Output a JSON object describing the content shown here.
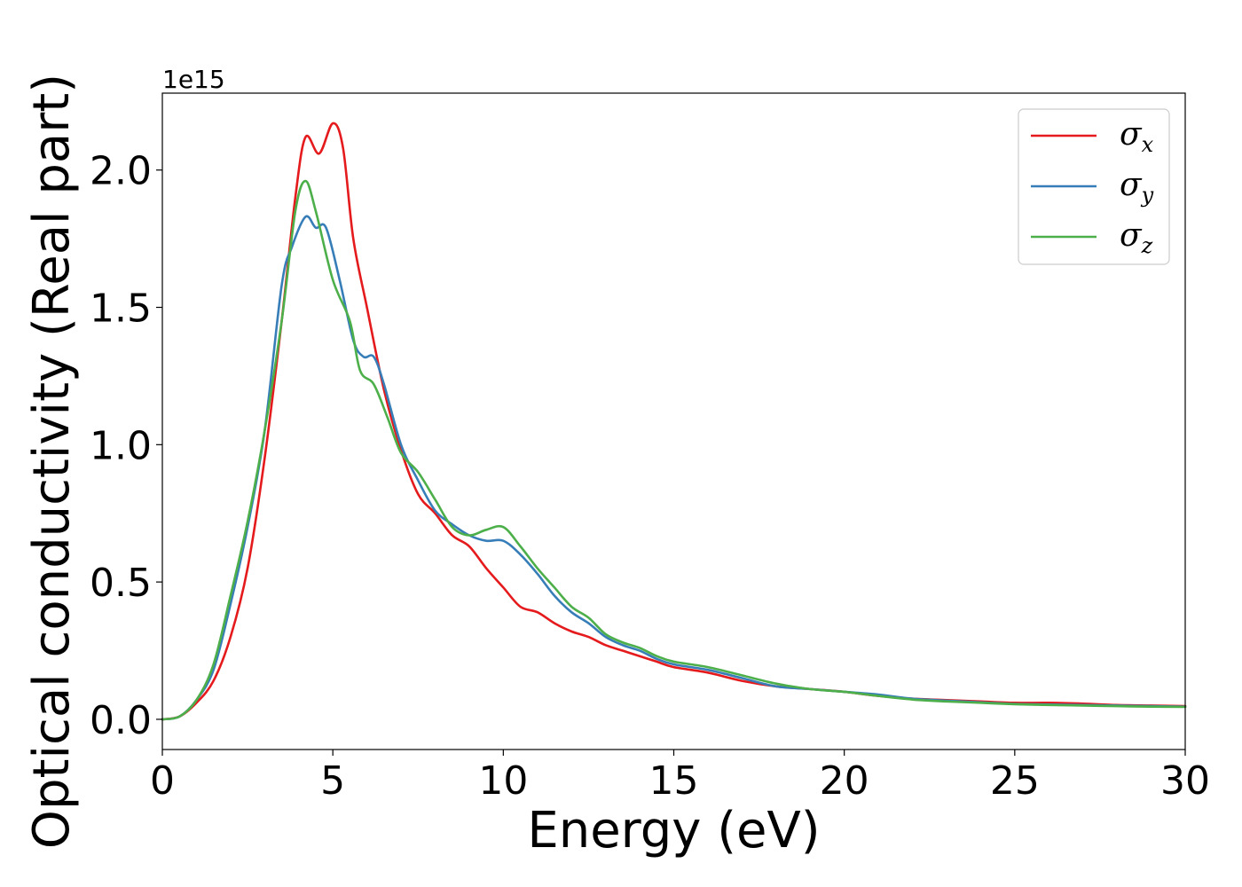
{
  "chart_data": {
    "type": "line",
    "xlabel": "Energy (eV)",
    "ylabel": "Optical conductivity (Real part)",
    "y_offset_label": "1e15",
    "xlim": [
      0,
      30
    ],
    "ylim": [
      -0.11,
      2.28
    ],
    "x_ticks": [
      0,
      5,
      10,
      15,
      20,
      25,
      30
    ],
    "x_tick_labels": [
      "0",
      "5",
      "10",
      "15",
      "20",
      "25",
      "30"
    ],
    "y_ticks": [
      0.0,
      0.5,
      1.0,
      1.5,
      2.0
    ],
    "y_tick_labels": [
      "0.0",
      "0.5",
      "1.0",
      "1.5",
      "2.0"
    ],
    "grid": false,
    "legend_position": "top-right",
    "series": [
      {
        "name": "σx",
        "legend_symbol": "σ",
        "legend_subscript": "x",
        "color": "#e41a1c",
        "points": [
          [
            0,
            0
          ],
          [
            0.5,
            0.01
          ],
          [
            1,
            0.06
          ],
          [
            1.5,
            0.14
          ],
          [
            2,
            0.3
          ],
          [
            2.5,
            0.55
          ],
          [
            3,
            0.95
          ],
          [
            3.5,
            1.45
          ],
          [
            3.9,
            1.9
          ],
          [
            4.2,
            2.12
          ],
          [
            4.6,
            2.06
          ],
          [
            5.0,
            2.17
          ],
          [
            5.3,
            2.08
          ],
          [
            5.6,
            1.75
          ],
          [
            6.0,
            1.5
          ],
          [
            6.5,
            1.2
          ],
          [
            7,
            0.98
          ],
          [
            7.5,
            0.82
          ],
          [
            8,
            0.75
          ],
          [
            8.5,
            0.67
          ],
          [
            9,
            0.63
          ],
          [
            9.5,
            0.55
          ],
          [
            10,
            0.48
          ],
          [
            10.5,
            0.41
          ],
          [
            11,
            0.39
          ],
          [
            11.5,
            0.35
          ],
          [
            12,
            0.32
          ],
          [
            12.5,
            0.3
          ],
          [
            13,
            0.27
          ],
          [
            13.5,
            0.25
          ],
          [
            14,
            0.23
          ],
          [
            14.5,
            0.21
          ],
          [
            15,
            0.19
          ],
          [
            16,
            0.17
          ],
          [
            17,
            0.14
          ],
          [
            18,
            0.12
          ],
          [
            19,
            0.11
          ],
          [
            20,
            0.1
          ],
          [
            21,
            0.085
          ],
          [
            22,
            0.075
          ],
          [
            23,
            0.07
          ],
          [
            24,
            0.065
          ],
          [
            25,
            0.06
          ],
          [
            26,
            0.06
          ],
          [
            27,
            0.057
          ],
          [
            28,
            0.052
          ],
          [
            29,
            0.05
          ],
          [
            30,
            0.048
          ]
        ]
      },
      {
        "name": "σy",
        "legend_symbol": "σ",
        "legend_subscript": "y",
        "color": "#377eb8",
        "points": [
          [
            0,
            0
          ],
          [
            0.5,
            0.01
          ],
          [
            1,
            0.07
          ],
          [
            1.5,
            0.18
          ],
          [
            2,
            0.42
          ],
          [
            2.5,
            0.7
          ],
          [
            3,
            1.05
          ],
          [
            3.5,
            1.58
          ],
          [
            3.8,
            1.72
          ],
          [
            4.2,
            1.83
          ],
          [
            4.5,
            1.79
          ],
          [
            4.8,
            1.79
          ],
          [
            5.2,
            1.6
          ],
          [
            5.6,
            1.38
          ],
          [
            5.9,
            1.32
          ],
          [
            6.2,
            1.32
          ],
          [
            6.5,
            1.22
          ],
          [
            7,
            1.0
          ],
          [
            7.5,
            0.87
          ],
          [
            8,
            0.76
          ],
          [
            8.5,
            0.71
          ],
          [
            9,
            0.67
          ],
          [
            9.5,
            0.65
          ],
          [
            10,
            0.65
          ],
          [
            10.5,
            0.6
          ],
          [
            11,
            0.53
          ],
          [
            11.5,
            0.45
          ],
          [
            12,
            0.39
          ],
          [
            12.5,
            0.35
          ],
          [
            13,
            0.3
          ],
          [
            13.5,
            0.27
          ],
          [
            14,
            0.25
          ],
          [
            14.5,
            0.22
          ],
          [
            15,
            0.2
          ],
          [
            16,
            0.18
          ],
          [
            17,
            0.15
          ],
          [
            18,
            0.12
          ],
          [
            19,
            0.11
          ],
          [
            20,
            0.1
          ],
          [
            21,
            0.09
          ],
          [
            22,
            0.075
          ],
          [
            23,
            0.068
          ],
          [
            24,
            0.062
          ],
          [
            25,
            0.056
          ],
          [
            26,
            0.054
          ],
          [
            27,
            0.052
          ],
          [
            28,
            0.05
          ],
          [
            29,
            0.048
          ],
          [
            30,
            0.046
          ]
        ]
      },
      {
        "name": "σz",
        "legend_symbol": "σ",
        "legend_subscript": "z",
        "color": "#4daf4a",
        "points": [
          [
            0,
            0
          ],
          [
            0.5,
            0.01
          ],
          [
            1,
            0.07
          ],
          [
            1.5,
            0.2
          ],
          [
            2,
            0.45
          ],
          [
            2.5,
            0.72
          ],
          [
            3,
            1.05
          ],
          [
            3.5,
            1.45
          ],
          [
            3.9,
            1.85
          ],
          [
            4.2,
            1.96
          ],
          [
            4.5,
            1.85
          ],
          [
            5.0,
            1.6
          ],
          [
            5.5,
            1.45
          ],
          [
            5.8,
            1.27
          ],
          [
            6.2,
            1.22
          ],
          [
            6.6,
            1.1
          ],
          [
            7,
            0.97
          ],
          [
            7.5,
            0.9
          ],
          [
            8,
            0.8
          ],
          [
            8.5,
            0.7
          ],
          [
            9,
            0.67
          ],
          [
            9.5,
            0.69
          ],
          [
            10,
            0.7
          ],
          [
            10.5,
            0.63
          ],
          [
            11,
            0.55
          ],
          [
            11.5,
            0.48
          ],
          [
            12,
            0.41
          ],
          [
            12.5,
            0.37
          ],
          [
            13,
            0.31
          ],
          [
            13.5,
            0.28
          ],
          [
            14,
            0.26
          ],
          [
            14.5,
            0.23
          ],
          [
            15,
            0.21
          ],
          [
            16,
            0.19
          ],
          [
            17,
            0.16
          ],
          [
            18,
            0.13
          ],
          [
            19,
            0.11
          ],
          [
            20,
            0.1
          ],
          [
            21,
            0.085
          ],
          [
            22,
            0.072
          ],
          [
            23,
            0.065
          ],
          [
            24,
            0.06
          ],
          [
            25,
            0.055
          ],
          [
            26,
            0.052
          ],
          [
            27,
            0.05
          ],
          [
            28,
            0.048
          ],
          [
            29,
            0.046
          ],
          [
            30,
            0.045
          ]
        ]
      }
    ]
  }
}
